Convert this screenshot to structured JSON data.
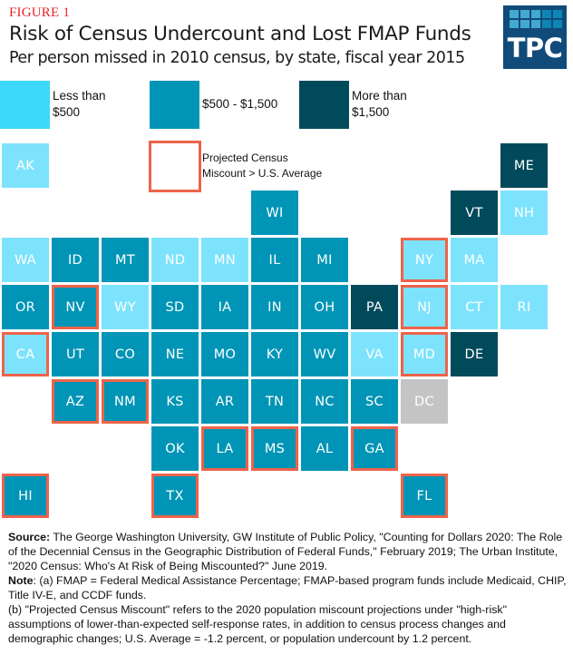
{
  "header": {
    "figure_label": "FIGURE 1",
    "title": "Risk of Census Undercount and Lost FMAP Funds",
    "subtitle": "Per person missed in 2010 census, by state, fiscal year 2015",
    "logo_text": "TPC",
    "logo_cell_colors": [
      "#43a9d0",
      "#43a9d0",
      "#43a9d0",
      "#0c86b5",
      "#0c86b5",
      "#43a9d0",
      "#43a9d0",
      "#43a9d0",
      "#0c86b5",
      "#0c86b5"
    ]
  },
  "colors": {
    "low": "#7de3fd",
    "mid": "#0095b6",
    "high": "#004a5c",
    "na": "#c4c4c4",
    "outline": "#ee634a",
    "legend_low": "#3dd8fb",
    "logo_bg": "#114b7a"
  },
  "legend": {
    "categories": [
      {
        "key": "low",
        "line1": "Less than",
        "line2": "$500"
      },
      {
        "key": "mid",
        "line1": "$500 - $1,500",
        "line2": ""
      },
      {
        "key": "high",
        "line1": "More than",
        "line2": "$1,500"
      }
    ],
    "outline_label_line1": "Projected Census",
    "outline_label_line2": "Miscount > U.S. Average"
  },
  "states": [
    {
      "abbr": "AK",
      "col": 0,
      "row": 0,
      "cat": "low",
      "miscount_above_avg": false
    },
    {
      "abbr": "ME",
      "col": 10,
      "row": 0,
      "cat": "high",
      "miscount_above_avg": false
    },
    {
      "abbr": "WI",
      "col": 5,
      "row": 1,
      "cat": "mid",
      "miscount_above_avg": false
    },
    {
      "abbr": "VT",
      "col": 9,
      "row": 1,
      "cat": "high",
      "miscount_above_avg": false
    },
    {
      "abbr": "NH",
      "col": 10,
      "row": 1,
      "cat": "low",
      "miscount_above_avg": false
    },
    {
      "abbr": "WA",
      "col": 0,
      "row": 2,
      "cat": "low",
      "miscount_above_avg": false
    },
    {
      "abbr": "ID",
      "col": 1,
      "row": 2,
      "cat": "mid",
      "miscount_above_avg": false
    },
    {
      "abbr": "MT",
      "col": 2,
      "row": 2,
      "cat": "mid",
      "miscount_above_avg": false
    },
    {
      "abbr": "ND",
      "col": 3,
      "row": 2,
      "cat": "low",
      "miscount_above_avg": false
    },
    {
      "abbr": "MN",
      "col": 4,
      "row": 2,
      "cat": "low",
      "miscount_above_avg": false
    },
    {
      "abbr": "IL",
      "col": 5,
      "row": 2,
      "cat": "mid",
      "miscount_above_avg": false
    },
    {
      "abbr": "MI",
      "col": 6,
      "row": 2,
      "cat": "mid",
      "miscount_above_avg": false
    },
    {
      "abbr": "NY",
      "col": 8,
      "row": 2,
      "cat": "low",
      "miscount_above_avg": true
    },
    {
      "abbr": "MA",
      "col": 9,
      "row": 2,
      "cat": "low",
      "miscount_above_avg": false
    },
    {
      "abbr": "OR",
      "col": 0,
      "row": 3,
      "cat": "mid",
      "miscount_above_avg": false
    },
    {
      "abbr": "NV",
      "col": 1,
      "row": 3,
      "cat": "mid",
      "miscount_above_avg": true
    },
    {
      "abbr": "WY",
      "col": 2,
      "row": 3,
      "cat": "low",
      "miscount_above_avg": false
    },
    {
      "abbr": "SD",
      "col": 3,
      "row": 3,
      "cat": "mid",
      "miscount_above_avg": false
    },
    {
      "abbr": "IA",
      "col": 4,
      "row": 3,
      "cat": "mid",
      "miscount_above_avg": false
    },
    {
      "abbr": "IN",
      "col": 5,
      "row": 3,
      "cat": "mid",
      "miscount_above_avg": false
    },
    {
      "abbr": "OH",
      "col": 6,
      "row": 3,
      "cat": "mid",
      "miscount_above_avg": false
    },
    {
      "abbr": "PA",
      "col": 7,
      "row": 3,
      "cat": "high",
      "miscount_above_avg": false
    },
    {
      "abbr": "NJ",
      "col": 8,
      "row": 3,
      "cat": "low",
      "miscount_above_avg": true
    },
    {
      "abbr": "CT",
      "col": 9,
      "row": 3,
      "cat": "low",
      "miscount_above_avg": false
    },
    {
      "abbr": "RI",
      "col": 10,
      "row": 3,
      "cat": "low",
      "miscount_above_avg": false
    },
    {
      "abbr": "CA",
      "col": 0,
      "row": 4,
      "cat": "low",
      "miscount_above_avg": true
    },
    {
      "abbr": "UT",
      "col": 1,
      "row": 4,
      "cat": "mid",
      "miscount_above_avg": false
    },
    {
      "abbr": "CO",
      "col": 2,
      "row": 4,
      "cat": "mid",
      "miscount_above_avg": false
    },
    {
      "abbr": "NE",
      "col": 3,
      "row": 4,
      "cat": "mid",
      "miscount_above_avg": false
    },
    {
      "abbr": "MO",
      "col": 4,
      "row": 4,
      "cat": "mid",
      "miscount_above_avg": false
    },
    {
      "abbr": "KY",
      "col": 5,
      "row": 4,
      "cat": "mid",
      "miscount_above_avg": false
    },
    {
      "abbr": "WV",
      "col": 6,
      "row": 4,
      "cat": "mid",
      "miscount_above_avg": false
    },
    {
      "abbr": "VA",
      "col": 7,
      "row": 4,
      "cat": "low",
      "miscount_above_avg": false
    },
    {
      "abbr": "MD",
      "col": 8,
      "row": 4,
      "cat": "low",
      "miscount_above_avg": true
    },
    {
      "abbr": "DE",
      "col": 9,
      "row": 4,
      "cat": "high",
      "miscount_above_avg": false
    },
    {
      "abbr": "AZ",
      "col": 1,
      "row": 5,
      "cat": "mid",
      "miscount_above_avg": true
    },
    {
      "abbr": "NM",
      "col": 2,
      "row": 5,
      "cat": "mid",
      "miscount_above_avg": true
    },
    {
      "abbr": "KS",
      "col": 3,
      "row": 5,
      "cat": "mid",
      "miscount_above_avg": false
    },
    {
      "abbr": "AR",
      "col": 4,
      "row": 5,
      "cat": "mid",
      "miscount_above_avg": false
    },
    {
      "abbr": "TN",
      "col": 5,
      "row": 5,
      "cat": "mid",
      "miscount_above_avg": false
    },
    {
      "abbr": "NC",
      "col": 6,
      "row": 5,
      "cat": "mid",
      "miscount_above_avg": false
    },
    {
      "abbr": "SC",
      "col": 7,
      "row": 5,
      "cat": "mid",
      "miscount_above_avg": false
    },
    {
      "abbr": "DC",
      "col": 8,
      "row": 5,
      "cat": "na",
      "miscount_above_avg": false
    },
    {
      "abbr": "OK",
      "col": 3,
      "row": 6,
      "cat": "mid",
      "miscount_above_avg": false
    },
    {
      "abbr": "LA",
      "col": 4,
      "row": 6,
      "cat": "mid",
      "miscount_above_avg": true
    },
    {
      "abbr": "MS",
      "col": 5,
      "row": 6,
      "cat": "mid",
      "miscount_above_avg": true
    },
    {
      "abbr": "AL",
      "col": 6,
      "row": 6,
      "cat": "mid",
      "miscount_above_avg": false
    },
    {
      "abbr": "GA",
      "col": 7,
      "row": 6,
      "cat": "mid",
      "miscount_above_avg": true
    },
    {
      "abbr": "HI",
      "col": 0,
      "row": 7,
      "cat": "mid",
      "miscount_above_avg": true
    },
    {
      "abbr": "TX",
      "col": 3,
      "row": 7,
      "cat": "mid",
      "miscount_above_avg": true
    },
    {
      "abbr": "FL",
      "col": 8,
      "row": 7,
      "cat": "mid",
      "miscount_above_avg": true
    }
  ],
  "footer": {
    "source_label": "Source:",
    "source_text": " The George Washington University, GW Institute of Public Policy, \"Counting for Dollars 2020: The Role of the Decennial Census in the Geographic Distribution of Federal Funds,\" February 2019; The Urban Institute, \"2020 Census: Who's At Risk of Being Miscounted?\" June 2019.",
    "note_label": "Note",
    "note_a": ": (a) FMAP = Federal Medical Assistance Percentage; FMAP-based program funds include Medicaid, CHIP, Title IV-E, and CCDF funds.",
    "note_b": "(b) \"Projected Census Miscount\" refers to the 2020 population miscount projections under \"high-risk\" assumptions of lower-than-expected self-response rates, in addition to census process changes and demographic changes; U.S. Average = -1.2 percent, or population undercount by 1.2 percent."
  }
}
